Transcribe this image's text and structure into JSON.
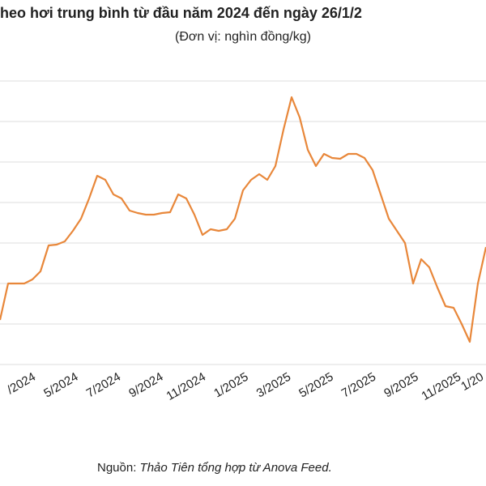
{
  "chart_data": {
    "type": "line",
    "title": "heo hơi trung bình từ đầu năm 2024 đến ngày 26/1/2",
    "subtitle": "(Đơn vị: nghìn đồng/kg)",
    "x_labels": [
      "/2024",
      "5/2024",
      "7/2024",
      "9/2024",
      "11/2024",
      "1/2025",
      "3/2025",
      "5/2025",
      "7/2025",
      "9/2025",
      "11/2025",
      "1/20"
    ],
    "values": [
      50.5,
      55,
      55,
      55,
      55.5,
      56.5,
      59.7,
      59.8,
      60.2,
      61.5,
      63,
      65.5,
      68.3,
      67.8,
      66,
      65.5,
      64,
      63.7,
      63.5,
      63.5,
      63.7,
      63.8,
      66,
      65.5,
      63.5,
      61,
      61.7,
      61.5,
      61.7,
      63,
      66.5,
      67.8,
      68.5,
      67.8,
      69.5,
      74,
      78,
      75.5,
      71.5,
      69.5,
      71,
      70.5,
      70.4,
      71,
      71,
      70.5,
      69,
      66,
      63,
      61.5,
      60,
      55,
      58,
      57,
      54.5,
      52.2,
      52,
      50,
      47.8,
      55,
      59.5
    ],
    "color": "#e8873a",
    "ylim": [
      45,
      80
    ],
    "grid_lines": [
      45,
      50,
      55,
      60,
      65,
      70,
      75,
      80
    ],
    "source_prefix": "Nguồn:",
    "source": "Thảo Tiên tổng hợp từ Anova Feed."
  }
}
